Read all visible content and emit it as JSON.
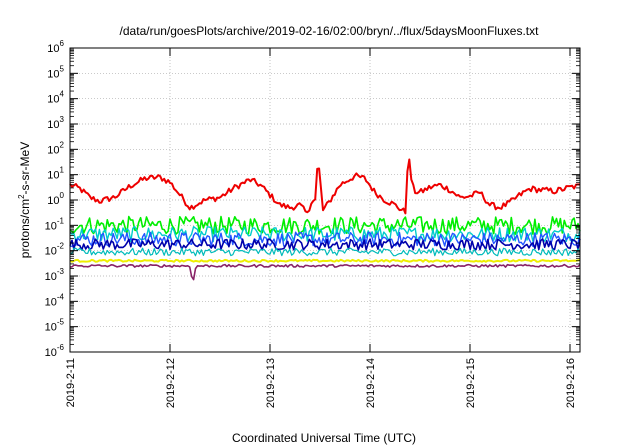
{
  "chart_data": {
    "type": "line",
    "title": "/data/run/goesPlots/archive/2019-02-16/02:00/bryn/../flux/5daysMoonFluxes.txt",
    "xlabel": "Coordinated Universal Time (UTC)",
    "ylabel": "protons/cm2-s-sr-MeV",
    "ylabel_parts": {
      "pre": "protons/cm",
      "sup": "2",
      "post": "-s-sr-MeV"
    },
    "yscale": "log",
    "ylim_exponents": [
      -6,
      6
    ],
    "y_tick_base": "10",
    "y_tick_exponents": [
      "-6",
      "-5",
      "-4",
      "-3",
      "-2",
      "-1",
      "0",
      "1",
      "2",
      "3",
      "4",
      "5",
      "6"
    ],
    "x_tick_labels": [
      "2019-2-11",
      "2019-2-12",
      "2019-2-13",
      "2019-2-14",
      "2019-2-15",
      "2019-2-16"
    ],
    "xlim_days": [
      11.0,
      16.1
    ],
    "grid": true,
    "series": [
      {
        "color": "#ee0000",
        "width": 2.0,
        "noise": 0.12,
        "points": [
          [
            11.0,
            0.6
          ],
          [
            11.1,
            0.45
          ],
          [
            11.2,
            0.1
          ],
          [
            11.3,
            -0.05
          ],
          [
            11.45,
            0.12
          ],
          [
            11.6,
            0.55
          ],
          [
            11.75,
            0.85
          ],
          [
            11.9,
            0.9
          ],
          [
            12.0,
            0.7
          ],
          [
            12.1,
            0.2
          ],
          [
            12.2,
            -0.3
          ],
          [
            12.35,
            0.0
          ],
          [
            12.5,
            0.1
          ],
          [
            12.65,
            0.5
          ],
          [
            12.8,
            0.8
          ],
          [
            12.9,
            0.6
          ],
          [
            13.0,
            0.2
          ],
          [
            13.1,
            -0.2
          ],
          [
            13.2,
            -0.3
          ],
          [
            13.3,
            -0.2
          ],
          [
            13.38,
            -0.6
          ],
          [
            13.42,
            0.1
          ],
          [
            13.45,
            -0.1
          ],
          [
            13.48,
            1.7
          ],
          [
            13.5,
            0.8
          ],
          [
            13.53,
            -0.4
          ],
          [
            13.58,
            -0.15
          ],
          [
            13.7,
            0.6
          ],
          [
            13.85,
            0.95
          ],
          [
            13.95,
            0.85
          ],
          [
            14.05,
            0.3
          ],
          [
            14.15,
            0.0
          ],
          [
            14.25,
            -0.2
          ],
          [
            14.32,
            -0.4
          ],
          [
            14.36,
            -0.5
          ],
          [
            14.38,
            2.0
          ],
          [
            14.41,
            0.9
          ],
          [
            14.44,
            0.35
          ],
          [
            14.5,
            0.3
          ],
          [
            14.6,
            0.5
          ],
          [
            14.7,
            0.6
          ],
          [
            14.8,
            0.4
          ],
          [
            14.9,
            0.1
          ],
          [
            15.0,
            0.15
          ],
          [
            15.1,
            0.3
          ],
          [
            15.2,
            -0.2
          ],
          [
            15.3,
            -0.3
          ],
          [
            15.4,
            -0.1
          ],
          [
            15.5,
            0.2
          ],
          [
            15.6,
            0.45
          ],
          [
            15.7,
            0.4
          ],
          [
            15.85,
            0.35
          ],
          [
            16.0,
            0.5
          ],
          [
            16.1,
            0.55
          ]
        ]
      },
      {
        "color": "#00ee00",
        "width": 1.6,
        "noise": 0.35,
        "points": [
          [
            11.0,
            -1.0
          ],
          [
            16.1,
            -1.0
          ]
        ]
      },
      {
        "color": "#00cccc",
        "width": 1.4,
        "noise": 0.3,
        "points": [
          [
            11.0,
            -1.35
          ],
          [
            16.1,
            -1.35
          ]
        ]
      },
      {
        "color": "#2255ff",
        "width": 1.4,
        "noise": 0.28,
        "points": [
          [
            11.0,
            -1.55
          ],
          [
            16.1,
            -1.55
          ]
        ]
      },
      {
        "color": "#0000aa",
        "width": 1.6,
        "noise": 0.22,
        "points": [
          [
            11.0,
            -1.75
          ],
          [
            16.1,
            -1.75
          ]
        ]
      },
      {
        "color": "#00bbbb",
        "width": 1.2,
        "noise": 0.15,
        "points": [
          [
            11.0,
            -2.05
          ],
          [
            16.1,
            -2.05
          ]
        ]
      },
      {
        "color": "#eeee00",
        "width": 2.0,
        "noise": 0.04,
        "points": [
          [
            11.0,
            -2.4
          ],
          [
            16.1,
            -2.4
          ]
        ]
      },
      {
        "color": "#882266",
        "width": 1.6,
        "noise": 0.05,
        "points": [
          [
            11.0,
            -2.6
          ],
          [
            12.2,
            -2.6
          ],
          [
            12.23,
            -3.3
          ],
          [
            12.26,
            -2.6
          ],
          [
            16.1,
            -2.6
          ]
        ]
      }
    ]
  }
}
